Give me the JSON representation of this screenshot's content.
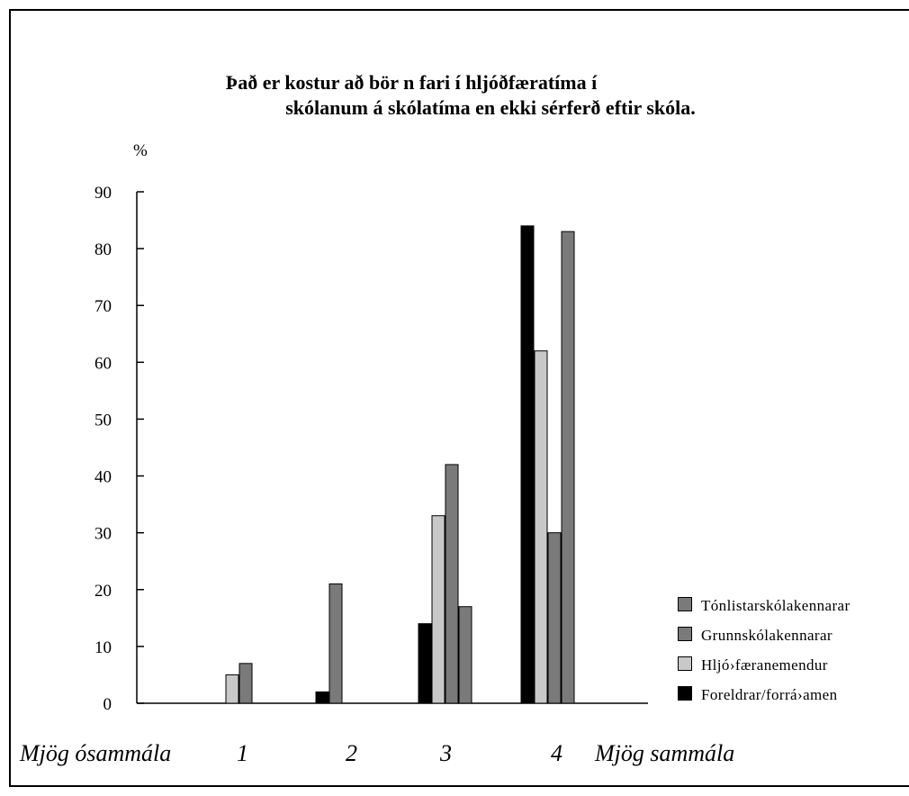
{
  "chart_data": {
    "type": "bar",
    "title_line1": "Það er kostur að bör n fari í hljóðfæratíma í",
    "title_line2": "skólanum á skólatíma en ekki sérferð eftir skóla.",
    "ylabel": "%",
    "ylim": [
      0,
      90
    ],
    "yticks": [
      "0",
      "10",
      "20",
      "30",
      "40",
      "50",
      "60",
      "70",
      "80",
      "90"
    ],
    "categories": [
      "1",
      "2",
      "3",
      "4"
    ],
    "x_left_label": "Mjög ósammála",
    "x_right_label": "Mjög sammála",
    "series": [
      {
        "name": "Foreldrar/forrá›amen",
        "color": "#000000",
        "values": [
          0,
          2,
          14,
          84
        ]
      },
      {
        "name": "Hljó›færanemendur",
        "color": "#c8c8c8",
        "values": [
          5,
          0,
          33,
          62
        ]
      },
      {
        "name": "Grunnskólakennarar",
        "color": "#7a7a7a",
        "values": [
          7,
          21,
          42,
          30
        ]
      },
      {
        "name": "Tónlistarskólakennarar",
        "color": "#7a7a7a",
        "values": [
          0,
          0,
          17,
          83
        ]
      }
    ],
    "legend": [
      {
        "name": "Tónlistarskólakennarar",
        "color": "#7a7a7a"
      },
      {
        "name": "Grunnskólakennarar",
        "color": "#7a7a7a"
      },
      {
        "name": "Hljó›færanemendur",
        "color": "#c8c8c8"
      },
      {
        "name": "Foreldrar/forrá›amen",
        "color": "#000000"
      }
    ],
    "legend_position": "bottom-right",
    "grid": false
  }
}
